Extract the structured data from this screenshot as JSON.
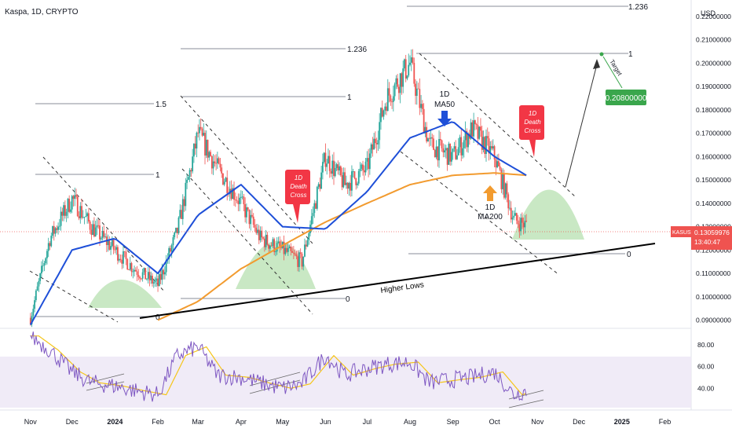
{
  "header": {
    "symbol_title": "Kaspa, 1D, CRYPTO"
  },
  "price_axis": {
    "currency": "USD",
    "ticks": [
      "0.22000000",
      "0.21000000",
      "0.20000000",
      "0.19000000",
      "0.18000000",
      "0.17000000",
      "0.16000000",
      "0.15000000",
      "0.14000000",
      "0.13000000",
      "0.12000000",
      "0.11000000",
      "0.10000000",
      "0.09000000"
    ],
    "current_price_tag": {
      "symbol": "KASUSD",
      "price": "0.13059976",
      "countdown": "13:40:47"
    }
  },
  "rsi_axis": {
    "ticks": [
      "80.00",
      "60.00",
      "40.00"
    ]
  },
  "time_axis": {
    "labels": [
      "Nov",
      "Dec",
      "2024",
      "Feb",
      "Mar",
      "Apr",
      "May",
      "Jun",
      "Jul",
      "Aug",
      "Sep",
      "Oct",
      "Nov",
      "Dec",
      "2025",
      "Feb"
    ]
  },
  "fib_labels": {
    "top_1236": "1.236",
    "mid_1236": "1.236",
    "level_1_5": "1.5",
    "level_1_a": "1",
    "level_1_b": "1",
    "level_1_c": "1",
    "level_0_a": "0",
    "level_0_b": "0",
    "level_0_c": "0"
  },
  "annotations": {
    "ma50": "1D\nMA50",
    "ma200": "1D\nMA200",
    "death_cross_1": "1D\nDeath\nCross",
    "death_cross_2": "1D\nDeath\nCross",
    "higher_lows": "Higher Lows",
    "target_label": "Target",
    "target_price": "0.20800000"
  },
  "colors": {
    "up_candle": "#26a69a",
    "down_candle": "#ef5350",
    "ma50": "#1e4fd8",
    "ma200": "#f29b2f",
    "support_zone": "#b7e0b0",
    "death_cross": "#f23645",
    "target_box": "#3aa64c",
    "rsi_line": "#7e57c2",
    "rsi_ma": "#f5c518",
    "rsi_band": "#ede7f6"
  },
  "chart_data": {
    "type": "candlestick",
    "title": "Kaspa, 1D, CRYPTO",
    "symbol": "KASUSD",
    "timeframe": "1D",
    "currency": "USD",
    "y_range": [
      0.09,
      0.22
    ],
    "last_price": 0.13059976,
    "target_price": 0.208,
    "approx_close_series": {
      "dates": [
        "2023-11-01",
        "2023-11-15",
        "2023-12-01",
        "2023-12-15",
        "2024-01-01",
        "2024-01-15",
        "2024-02-01",
        "2024-02-15",
        "2024-03-01",
        "2024-03-15",
        "2024-04-01",
        "2024-04-15",
        "2024-05-01",
        "2024-05-15",
        "2024-06-01",
        "2024-06-15",
        "2024-07-01",
        "2024-07-15",
        "2024-08-01",
        "2024-08-15",
        "2024-09-01",
        "2024-09-15",
        "2024-10-01",
        "2024-10-15",
        "2024-10-24"
      ],
      "close": [
        0.091,
        0.125,
        0.142,
        0.13,
        0.12,
        0.112,
        0.105,
        0.128,
        0.17,
        0.155,
        0.14,
        0.125,
        0.12,
        0.115,
        0.16,
        0.148,
        0.155,
        0.185,
        0.2,
        0.165,
        0.16,
        0.172,
        0.16,
        0.133,
        0.1306
      ]
    },
    "ma50_approx": {
      "dates": [
        "2023-11-01",
        "2023-12-01",
        "2024-01-01",
        "2024-02-01",
        "2024-03-01",
        "2024-04-01",
        "2024-05-01",
        "2024-06-01",
        "2024-07-01",
        "2024-08-01",
        "2024-09-01",
        "2024-10-01",
        "2024-10-24"
      ],
      "values": [
        0.088,
        0.12,
        0.125,
        0.11,
        0.135,
        0.148,
        0.13,
        0.129,
        0.145,
        0.168,
        0.175,
        0.16,
        0.152
      ]
    },
    "ma200_approx": {
      "dates": [
        "2024-02-01",
        "2024-03-01",
        "2024-04-01",
        "2024-05-01",
        "2024-06-01",
        "2024-07-01",
        "2024-08-01",
        "2024-09-01",
        "2024-10-01",
        "2024-10-24"
      ],
      "values": [
        0.09,
        0.098,
        0.112,
        0.122,
        0.132,
        0.14,
        0.148,
        0.152,
        0.153,
        0.152
      ]
    },
    "rsi": {
      "y_range": [
        20,
        95
      ],
      "band": [
        30,
        70
      ],
      "dates": [
        "2023-11-01",
        "2023-11-15",
        "2023-12-01",
        "2023-12-15",
        "2024-01-01",
        "2024-01-15",
        "2024-02-01",
        "2024-02-15",
        "2024-03-01",
        "2024-03-15",
        "2024-04-01",
        "2024-04-15",
        "2024-05-01",
        "2024-05-15",
        "2024-06-01",
        "2024-06-15",
        "2024-07-01",
        "2024-07-15",
        "2024-08-01",
        "2024-08-15",
        "2024-09-01",
        "2024-09-15",
        "2024-10-01",
        "2024-10-15",
        "2024-10-24"
      ],
      "values": [
        88,
        75,
        55,
        45,
        42,
        38,
        34,
        70,
        78,
        52,
        50,
        45,
        40,
        44,
        70,
        52,
        58,
        62,
        64,
        45,
        48,
        50,
        55,
        34,
        38
      ]
    }
  }
}
